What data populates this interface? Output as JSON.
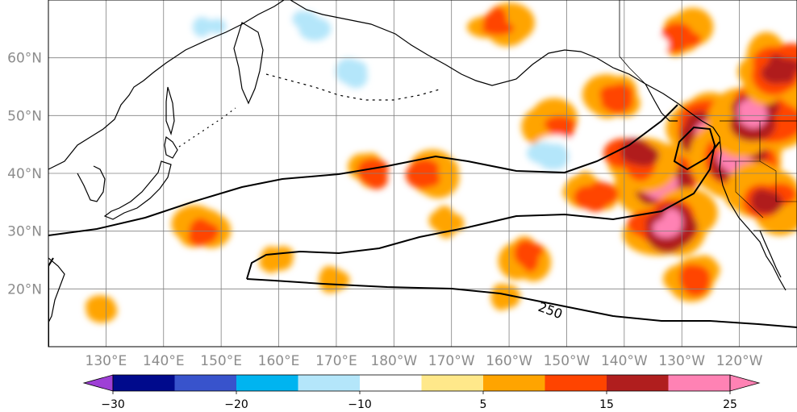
{
  "map": {
    "lat_labels": [
      {
        "lat": 60,
        "text": "60°N"
      },
      {
        "lat": 50,
        "text": "50°N"
      },
      {
        "lat": 40,
        "text": "40°N"
      },
      {
        "lat": 30,
        "text": "30°N"
      },
      {
        "lat": 20,
        "text": "20°N"
      }
    ],
    "lon_labels": [
      {
        "lon": 130,
        "text": "130°E"
      },
      {
        "lon": 140,
        "text": "140°E"
      },
      {
        "lon": 150,
        "text": "150°E"
      },
      {
        "lon": 160,
        "text": "160°E"
      },
      {
        "lon": 170,
        "text": "170°E"
      },
      {
        "lon": 180,
        "text": "180°W"
      },
      {
        "lon": 190,
        "text": "170°W"
      },
      {
        "lon": 200,
        "text": "160°W"
      },
      {
        "lon": 210,
        "text": "150°W"
      },
      {
        "lon": 220,
        "text": "140°W"
      },
      {
        "lon": 230,
        "text": "130°W"
      },
      {
        "lon": 240,
        "text": "120°W"
      }
    ],
    "extent": {
      "lon_min": 120,
      "lon_max": 250,
      "lat_min": 10,
      "lat_max": 70
    },
    "contour_label": "250",
    "hotspots": [
      {
        "lon": 226,
        "lat": 38,
        "value": 20
      },
      {
        "lon": 222,
        "lat": 43,
        "value": 18
      },
      {
        "lon": 235,
        "lat": 47,
        "value": 22
      },
      {
        "lon": 240,
        "lat": 42,
        "value": 24
      },
      {
        "lon": 243,
        "lat": 50,
        "value": 20
      },
      {
        "lon": 245,
        "lat": 35,
        "value": 18
      },
      {
        "lon": 228,
        "lat": 31,
        "value": 22
      },
      {
        "lon": 215,
        "lat": 36,
        "value": 14
      },
      {
        "lon": 218,
        "lat": 53,
        "value": 14
      },
      {
        "lon": 176,
        "lat": 40,
        "value": 12
      },
      {
        "lon": 186,
        "lat": 40,
        "value": 10
      },
      {
        "lon": 147,
        "lat": 30,
        "value": 12
      },
      {
        "lon": 232,
        "lat": 22,
        "value": 12
      },
      {
        "lon": 203,
        "lat": 26,
        "value": 10
      },
      {
        "lon": 160,
        "lat": 25,
        "value": 9
      },
      {
        "lon": 200,
        "lat": 18,
        "value": 9
      },
      {
        "lon": 198,
        "lat": 66,
        "value": 12
      },
      {
        "lon": 230,
        "lat": 64,
        "value": 14
      },
      {
        "lon": 128,
        "lat": 17,
        "value": 9
      },
      {
        "lon": 190,
        "lat": 32,
        "value": 8
      },
      {
        "lon": 170,
        "lat": 22,
        "value": 8
      },
      {
        "lon": 247,
        "lat": 58,
        "value": 16
      },
      {
        "lon": 208,
        "lat": 48,
        "value": 10
      },
      {
        "lon": 148,
        "lat": 65,
        "value": -12
      },
      {
        "lon": 155,
        "lat": 55,
        "value": -8
      },
      {
        "lon": 137,
        "lat": 55,
        "value": -9
      },
      {
        "lon": 172,
        "lat": 57,
        "value": -10
      },
      {
        "lon": 207,
        "lat": 43,
        "value": -14
      },
      {
        "lon": 205,
        "lat": 58,
        "value": -8
      },
      {
        "lon": 183,
        "lat": 53,
        "value": -7
      },
      {
        "lon": 165,
        "lat": 66,
        "value": -12
      },
      {
        "lon": 140,
        "lat": 15,
        "value": -6
      },
      {
        "lon": 193,
        "lat": 20,
        "value": -7
      },
      {
        "lon": 224,
        "lat": 62,
        "value": -9
      },
      {
        "lon": 120,
        "lat": 47,
        "value": -6
      }
    ]
  },
  "colorbar": {
    "levels": [
      -30,
      -25,
      -20,
      -15,
      -10,
      -5,
      5,
      10,
      15,
      20,
      25
    ],
    "colors": [
      "#9e3fd6",
      "#000a8c",
      "#3853cc",
      "#00b4f0",
      "#b4e6fa",
      "#ffffff",
      "#ffe88a",
      "#ffa400",
      "#ff4400",
      "#b01e1e",
      "#ff82b4"
    ],
    "under_color": "#9e3fd6",
    "over_color": "#ff82b4",
    "tick_labels": [
      "−30",
      "−20",
      "−10",
      "5",
      "15",
      "25"
    ],
    "tick_values": [
      -30,
      -20,
      -10,
      5,
      15,
      25
    ]
  }
}
